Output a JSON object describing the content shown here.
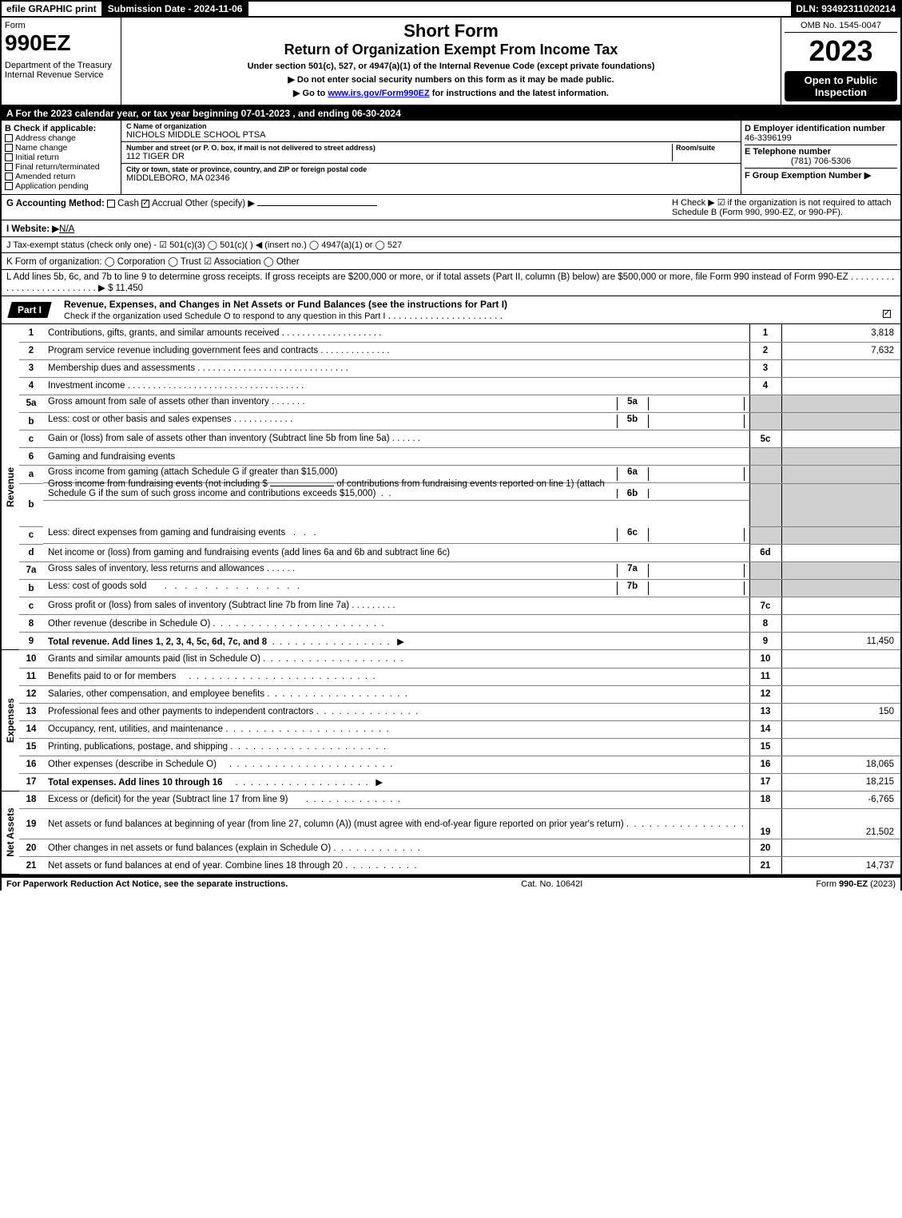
{
  "topbar": {
    "efile": "efile GRAPHIC print",
    "submission": "Submission Date - 2024-11-06",
    "dln": "DLN: 93492311020214"
  },
  "header": {
    "form_label": "Form",
    "form_no": "990EZ",
    "dept": "Department of the Treasury\nInternal Revenue Service",
    "short_form": "Short Form",
    "return_title": "Return of Organization Exempt From Income Tax",
    "under": "Under section 501(c), 527, or 4947(a)(1) of the Internal Revenue Code (except private foundations)",
    "donot": "▶ Do not enter social security numbers on this form as it may be made public.",
    "goto_pre": "▶ Go to ",
    "goto_link": "www.irs.gov/Form990EZ",
    "goto_post": " for instructions and the latest information.",
    "omb": "OMB No. 1545-0047",
    "year": "2023",
    "open": "Open to Public Inspection"
  },
  "row_a": "A  For the 2023 calendar year, or tax year beginning 07-01-2023 , and ending 06-30-2024",
  "box_b": {
    "title": "B  Check if applicable:",
    "items": [
      "Address change",
      "Name change",
      "Initial return",
      "Final return/terminated",
      "Amended return",
      "Application pending"
    ]
  },
  "box_c": {
    "lbl_name": "C Name of organization",
    "name": "NICHOLS MIDDLE SCHOOL PTSA",
    "lbl_addr": "Number and street (or P. O. box, if mail is not delivered to street address)",
    "room": "Room/suite",
    "addr": "112 TIGER DR",
    "lbl_city": "City or town, state or province, country, and ZIP or foreign postal code",
    "city": "MIDDLEBORO, MA  02346"
  },
  "box_d": {
    "lbl_ein": "D Employer identification number",
    "ein": "46-3396199",
    "lbl_tel": "E Telephone number",
    "tel": "(781) 706-5306",
    "lbl_grp": "F Group Exemption Number  ▶"
  },
  "row_g": {
    "label": "G Accounting Method:",
    "cash": "Cash",
    "accrual": "Accrual",
    "other": "Other (specify) ▶"
  },
  "row_h": "H  Check ▶ ☑ if the organization is not required to attach Schedule B (Form 990, 990-EZ, or 990-PF).",
  "row_i": {
    "label": "I Website: ▶",
    "val": "N/A"
  },
  "row_j": "J Tax-exempt status (check only one) - ☑ 501(c)(3)  ◯ 501(c)(  ) ◀ (insert no.)  ◯ 4947(a)(1) or  ◯ 527",
  "row_k": "K Form of organization:   ◯ Corporation   ◯ Trust   ☑ Association   ◯ Other",
  "row_l": {
    "text": "L Add lines 5b, 6c, and 7b to line 9 to determine gross receipts. If gross receipts are $200,000 or more, or if total assets (Part II, column (B) below) are $500,000 or more, file Form 990 instead of Form 990-EZ",
    "arrow": "▶ $",
    "val": "11,450"
  },
  "part1": {
    "tab": "Part I",
    "title": "Revenue, Expenses, and Changes in Net Assets or Fund Balances (see the instructions for Part I)",
    "check_line": "Check if the organization used Schedule O to respond to any question in this Part I"
  },
  "lines": {
    "1": {
      "d": "Contributions, gifts, grants, and similar amounts received",
      "n": "1",
      "v": "3,818"
    },
    "2": {
      "d": "Program service revenue including government fees and contracts",
      "n": "2",
      "v": "7,632"
    },
    "3": {
      "d": "Membership dues and assessments",
      "n": "3",
      "v": ""
    },
    "4": {
      "d": "Investment income",
      "n": "4",
      "v": ""
    },
    "5a": {
      "d": "Gross amount from sale of assets other than inventory",
      "s": "5a"
    },
    "5b": {
      "d": "Less: cost or other basis and sales expenses",
      "s": "5b"
    },
    "5c": {
      "d": "Gain or (loss) from sale of assets other than inventory (Subtract line 5b from line 5a)",
      "n": "5c",
      "v": ""
    },
    "6": {
      "d": "Gaming and fundraising events"
    },
    "6a": {
      "d": "Gross income from gaming (attach Schedule G if greater than $15,000)",
      "s": "6a"
    },
    "6b": {
      "d": "Gross income from fundraising events (not including $",
      "d2": "of contributions from fundraising events reported on line 1) (attach Schedule G if the sum of such gross income and contributions exceeds $15,000)",
      "s": "6b"
    },
    "6c": {
      "d": "Less: direct expenses from gaming and fundraising events",
      "s": "6c"
    },
    "6d": {
      "d": "Net income or (loss) from gaming and fundraising events (add lines 6a and 6b and subtract line 6c)",
      "n": "6d",
      "v": ""
    },
    "7a": {
      "d": "Gross sales of inventory, less returns and allowances",
      "s": "7a"
    },
    "7b": {
      "d": "Less: cost of goods sold",
      "s": "7b"
    },
    "7c": {
      "d": "Gross profit or (loss) from sales of inventory (Subtract line 7b from line 7a)",
      "n": "7c",
      "v": ""
    },
    "8": {
      "d": "Other revenue (describe in Schedule O)",
      "n": "8",
      "v": ""
    },
    "9": {
      "d": "Total revenue. Add lines 1, 2, 3, 4, 5c, 6d, 7c, and 8",
      "n": "9",
      "v": "11,450",
      "bold": true,
      "arrow": true
    },
    "10": {
      "d": "Grants and similar amounts paid (list in Schedule O)",
      "n": "10",
      "v": ""
    },
    "11": {
      "d": "Benefits paid to or for members",
      "n": "11",
      "v": ""
    },
    "12": {
      "d": "Salaries, other compensation, and employee benefits",
      "n": "12",
      "v": ""
    },
    "13": {
      "d": "Professional fees and other payments to independent contractors",
      "n": "13",
      "v": "150"
    },
    "14": {
      "d": "Occupancy, rent, utilities, and maintenance",
      "n": "14",
      "v": ""
    },
    "15": {
      "d": "Printing, publications, postage, and shipping",
      "n": "15",
      "v": ""
    },
    "16": {
      "d": "Other expenses (describe in Schedule O)",
      "n": "16",
      "v": "18,065"
    },
    "17": {
      "d": "Total expenses. Add lines 10 through 16",
      "n": "17",
      "v": "18,215",
      "bold": true,
      "arrow": true
    },
    "18": {
      "d": "Excess or (deficit) for the year (Subtract line 17 from line 9)",
      "n": "18",
      "v": "-6,765"
    },
    "19": {
      "d": "Net assets or fund balances at beginning of year (from line 27, column (A)) (must agree with end-of-year figure reported on prior year's return)",
      "n": "19",
      "v": "21,502"
    },
    "20": {
      "d": "Other changes in net assets or fund balances (explain in Schedule O)",
      "n": "20",
      "v": ""
    },
    "21": {
      "d": "Net assets or fund balances at end of year. Combine lines 18 through 20",
      "n": "21",
      "v": "14,737"
    }
  },
  "sides": {
    "rev": "Revenue",
    "exp": "Expenses",
    "net": "Net Assets"
  },
  "footer": {
    "left": "For Paperwork Reduction Act Notice, see the separate instructions.",
    "mid": "Cat. No. 10642I",
    "right_pre": "Form ",
    "right_b": "990-EZ",
    "right_post": " (2023)"
  }
}
